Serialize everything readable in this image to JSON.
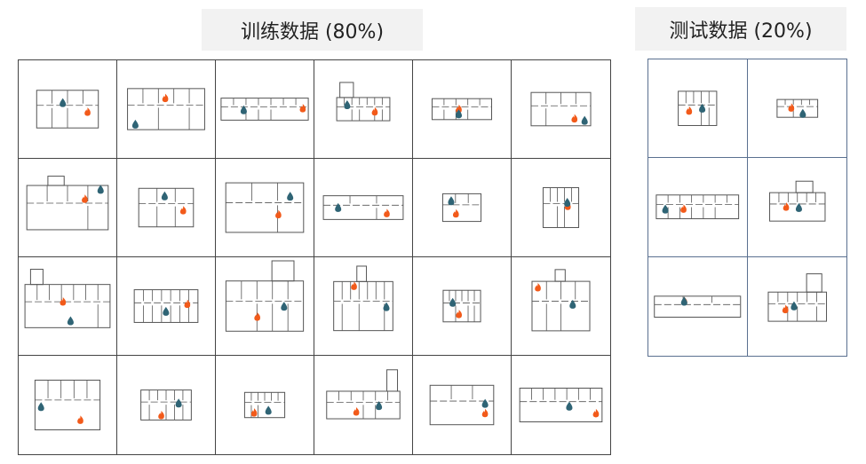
{
  "train": {
    "title": "训练数据 (80%)",
    "cell_count": 24
  },
  "test": {
    "title": "测试数据 (20%)",
    "cell_count": 6
  },
  "icons": {
    "fire": "fire-icon",
    "water": "water-drop-icon"
  },
  "colors": {
    "fire": "#f25a1a",
    "water": "#2f6475",
    "plan_line": "#555555",
    "train_border": "#444444",
    "test_border": "#5a7090",
    "title_bg": "#f2f2f2"
  }
}
